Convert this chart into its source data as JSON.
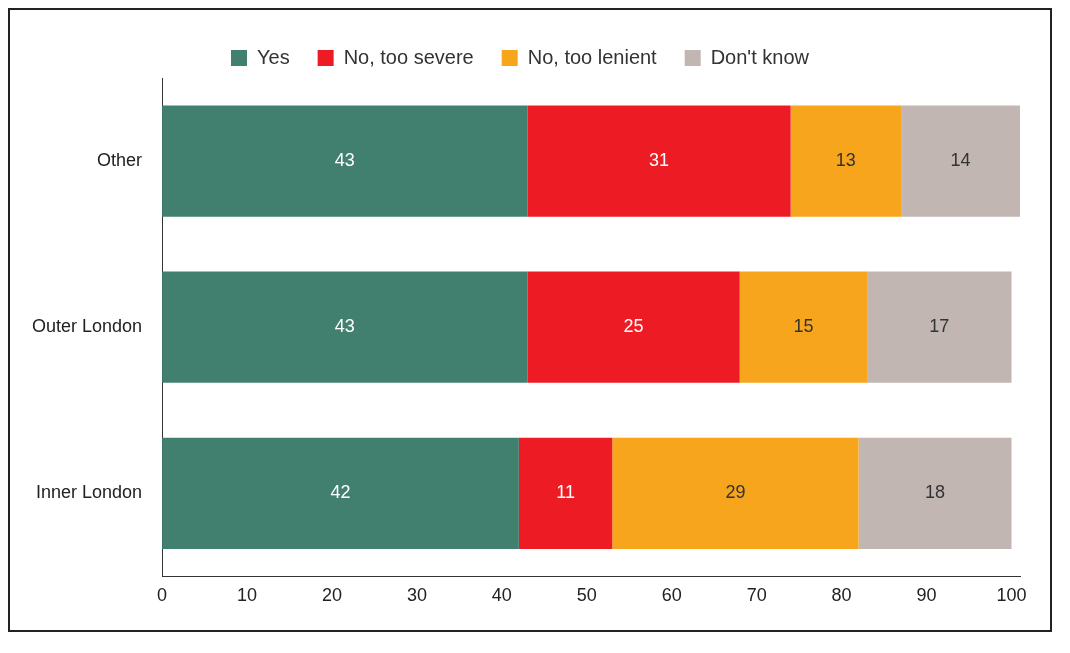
{
  "chart_data": {
    "type": "bar",
    "orientation": "horizontal",
    "stacked": true,
    "categories": [
      "Other",
      "Outer London",
      "Inner London"
    ],
    "series": [
      {
        "name": "Yes",
        "color": "#41806f",
        "values": [
          43,
          43,
          42
        ]
      },
      {
        "name": "No, too severe",
        "color": "#ed1c24",
        "values": [
          31,
          25,
          11
        ]
      },
      {
        "name": "No, too lenient",
        "color": "#f6a51c",
        "values": [
          13,
          15,
          29
        ]
      },
      {
        "name": "Don't know",
        "color": "#c1b6b2",
        "values": [
          14,
          17,
          18
        ]
      }
    ],
    "xlim": [
      0,
      101
    ],
    "xticks": [
      0,
      10,
      20,
      30,
      40,
      50,
      60,
      70,
      80,
      90,
      100
    ],
    "grid": false,
    "legend": "top",
    "data_labels": true
  }
}
